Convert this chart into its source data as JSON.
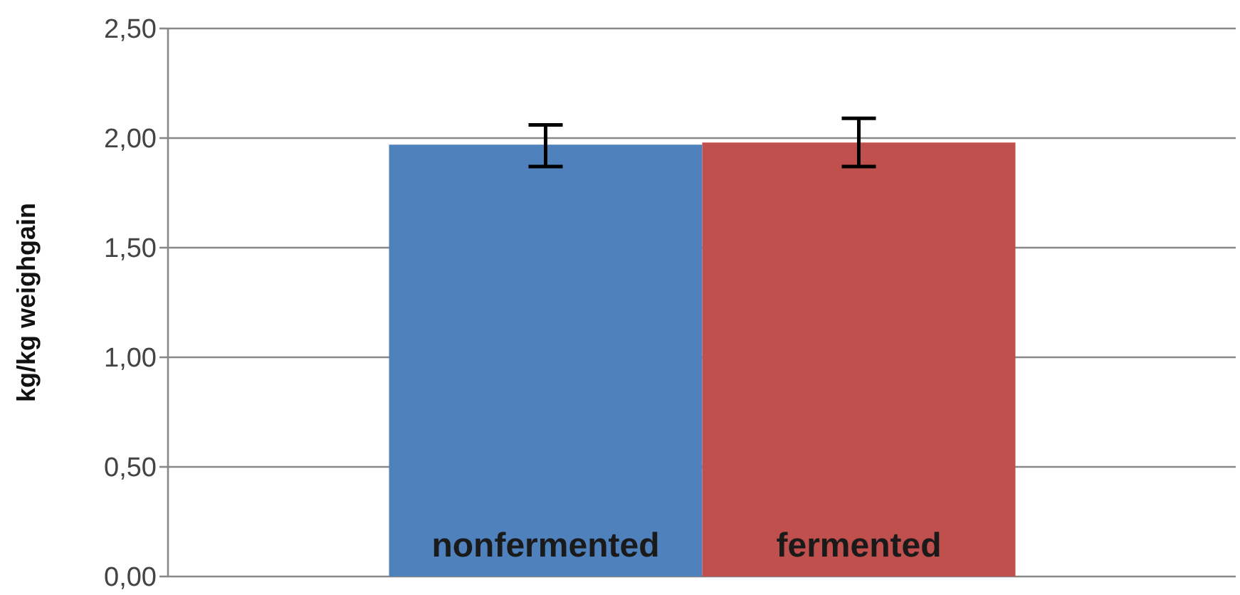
{
  "chart_data": {
    "type": "bar",
    "ylabel": "kg/kg weighgain",
    "categories": [
      null
    ],
    "series": [
      {
        "name": "nonfermented",
        "color": "#4f81bd",
        "values": [
          1.97
        ],
        "errors": [
          [
            1.87,
            2.06
          ]
        ]
      },
      {
        "name": "fermented",
        "color": "#c0504d",
        "values": [
          1.98
        ],
        "errors": [
          [
            1.87,
            2.09
          ]
        ]
      }
    ],
    "ylim": [
      0,
      2.5
    ],
    "yticks": [
      {
        "value": 0,
        "label": "0,00"
      },
      {
        "value": 0.5,
        "label": "0,50"
      },
      {
        "value": 1,
        "label": "1,00"
      },
      {
        "value": 1.5,
        "label": "1,50"
      },
      {
        "value": 2,
        "label": "2,00"
      },
      {
        "value": 2.5,
        "label": "2,50"
      }
    ],
    "grid": "y",
    "legend": false
  }
}
